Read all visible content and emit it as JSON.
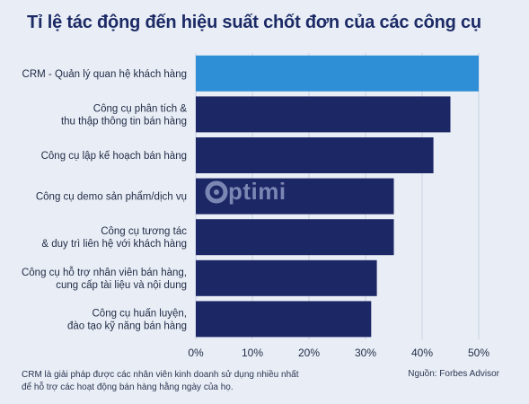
{
  "title": "Tỉ lệ tác động đến hiệu suất chốt đơn của các công cụ",
  "colors": {
    "highlight": "#2f8fd6",
    "bar": "#1c2766",
    "background": "#e9eef6",
    "grid": "#c9d2e2"
  },
  "chart_data": {
    "type": "bar",
    "orientation": "horizontal",
    "categories": [
      [
        "CRM - Quản lý quan hệ khách hàng"
      ],
      [
        "Công cụ phân tích &",
        "thu thập thông tin bán hàng"
      ],
      [
        "Công cụ lập kế hoạch bán hàng"
      ],
      [
        "Công cụ demo sản phẩm/dịch vụ"
      ],
      [
        "Công cụ tương tác",
        "& duy trì liên hệ với khách hàng"
      ],
      [
        "Công cụ hỗ trợ nhân viên bán hàng,",
        "cung cấp tài liệu và nội dung"
      ],
      [
        "Công cụ huấn luyện,",
        "đào tạo kỹ năng bán hàng"
      ]
    ],
    "values": [
      50,
      45,
      42,
      35,
      35,
      32,
      31
    ],
    "xlim": [
      0,
      50
    ],
    "x_ticks": [
      "0%",
      "10%",
      "20%",
      "30%",
      "40%",
      "50%"
    ],
    "x_tick_values": [
      0,
      10,
      20,
      30,
      40,
      50
    ],
    "highlight_index": 0,
    "grid": true
  },
  "watermark": {
    "text": "ptimi"
  },
  "footnote": [
    "CRM là giải pháp được các nhân viên kinh doanh sử dụng nhiều nhất",
    "để hỗ trợ các hoạt động bán hàng hằng ngày của họ."
  ],
  "source": "Nguồn: Forbes Advisor"
}
